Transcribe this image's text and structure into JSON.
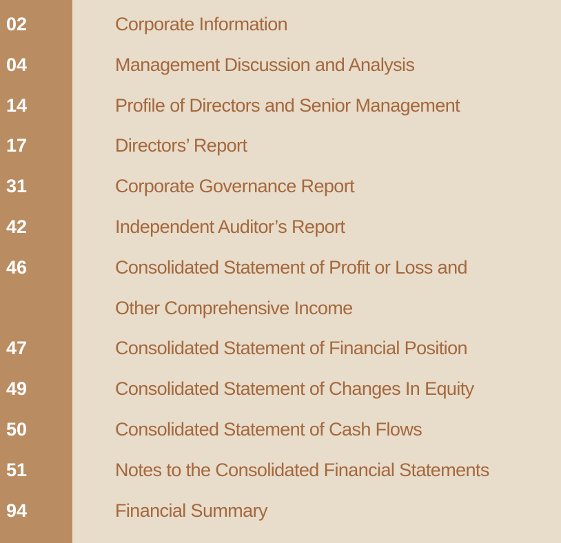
{
  "contents": [
    {
      "page": "02",
      "lines": [
        "Corporate Information"
      ]
    },
    {
      "page": "04",
      "lines": [
        "Management Discussion and Analysis"
      ]
    },
    {
      "page": "14",
      "lines": [
        "Profile of Directors and Senior Management"
      ]
    },
    {
      "page": "17",
      "lines": [
        "Directors’ Report"
      ]
    },
    {
      "page": "31",
      "lines": [
        "Corporate Governance Report"
      ]
    },
    {
      "page": "42",
      "lines": [
        "Independent Auditor’s Report"
      ]
    },
    {
      "page": "46",
      "lines": [
        "Consolidated Statement of Profit or Loss and",
        "Other Comprehensive Income"
      ]
    },
    {
      "page": "47",
      "lines": [
        "Consolidated Statement of Financial Position"
      ]
    },
    {
      "page": "49",
      "lines": [
        "Consolidated Statement of Changes In Equity"
      ]
    },
    {
      "page": "50",
      "lines": [
        "Consolidated Statement of Cash Flows"
      ]
    },
    {
      "page": "51",
      "lines": [
        "Notes to the Consolidated Financial Statements"
      ]
    },
    {
      "page": "94",
      "lines": [
        "Financial Summary"
      ]
    }
  ]
}
